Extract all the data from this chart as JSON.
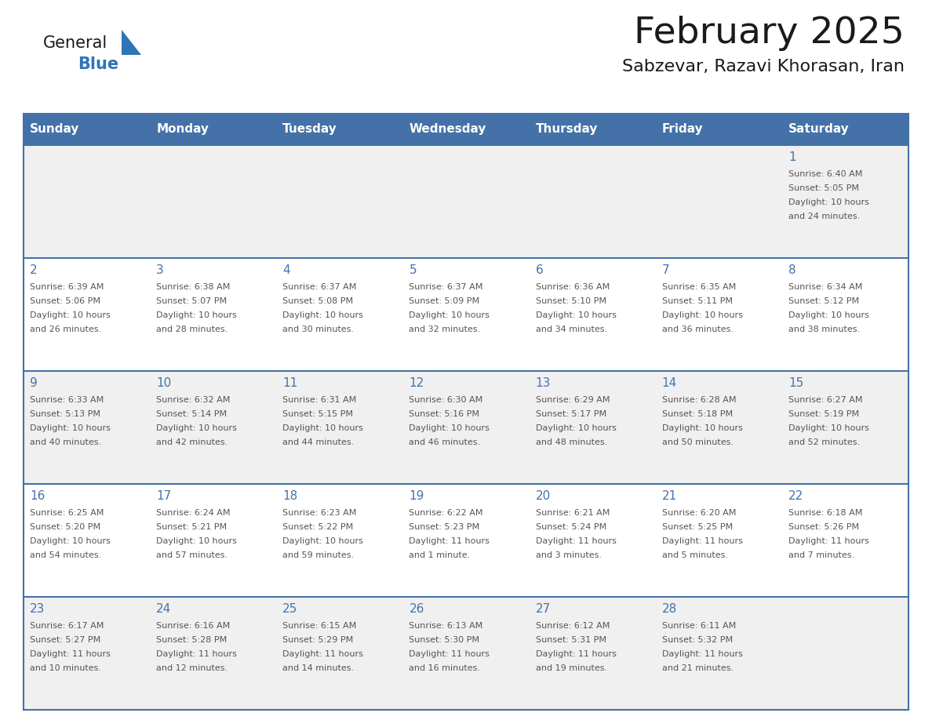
{
  "title": "February 2025",
  "subtitle": "Sabzevar, Razavi Khorasan, Iran",
  "days_of_week": [
    "Sunday",
    "Monday",
    "Tuesday",
    "Wednesday",
    "Thursday",
    "Friday",
    "Saturday"
  ],
  "header_bg": "#4472a8",
  "header_text_color": "#ffffff",
  "cell_bg_row0": "#f0f0f0",
  "cell_bg_row1": "#ffffff",
  "cell_bg_row2": "#f0f0f0",
  "cell_bg_row3": "#ffffff",
  "cell_bg_row4": "#f0f0f0",
  "cell_border_color": "#4472a8",
  "day_number_color": "#4472a8",
  "info_text_color": "#555555",
  "title_color": "#1a1a1a",
  "subtitle_color": "#1a1a1a",
  "logo_general_color": "#1a1a1a",
  "logo_blue_color": "#2e75b6",
  "days": [
    {
      "day": 1,
      "col": 6,
      "row": 0,
      "sunrise": "6:40 AM",
      "sunset": "5:05 PM",
      "daylight": "10 hours and 24 minutes."
    },
    {
      "day": 2,
      "col": 0,
      "row": 1,
      "sunrise": "6:39 AM",
      "sunset": "5:06 PM",
      "daylight": "10 hours and 26 minutes."
    },
    {
      "day": 3,
      "col": 1,
      "row": 1,
      "sunrise": "6:38 AM",
      "sunset": "5:07 PM",
      "daylight": "10 hours and 28 minutes."
    },
    {
      "day": 4,
      "col": 2,
      "row": 1,
      "sunrise": "6:37 AM",
      "sunset": "5:08 PM",
      "daylight": "10 hours and 30 minutes."
    },
    {
      "day": 5,
      "col": 3,
      "row": 1,
      "sunrise": "6:37 AM",
      "sunset": "5:09 PM",
      "daylight": "10 hours and 32 minutes."
    },
    {
      "day": 6,
      "col": 4,
      "row": 1,
      "sunrise": "6:36 AM",
      "sunset": "5:10 PM",
      "daylight": "10 hours and 34 minutes."
    },
    {
      "day": 7,
      "col": 5,
      "row": 1,
      "sunrise": "6:35 AM",
      "sunset": "5:11 PM",
      "daylight": "10 hours and 36 minutes."
    },
    {
      "day": 8,
      "col": 6,
      "row": 1,
      "sunrise": "6:34 AM",
      "sunset": "5:12 PM",
      "daylight": "10 hours and 38 minutes."
    },
    {
      "day": 9,
      "col": 0,
      "row": 2,
      "sunrise": "6:33 AM",
      "sunset": "5:13 PM",
      "daylight": "10 hours and 40 minutes."
    },
    {
      "day": 10,
      "col": 1,
      "row": 2,
      "sunrise": "6:32 AM",
      "sunset": "5:14 PM",
      "daylight": "10 hours and 42 minutes."
    },
    {
      "day": 11,
      "col": 2,
      "row": 2,
      "sunrise": "6:31 AM",
      "sunset": "5:15 PM",
      "daylight": "10 hours and 44 minutes."
    },
    {
      "day": 12,
      "col": 3,
      "row": 2,
      "sunrise": "6:30 AM",
      "sunset": "5:16 PM",
      "daylight": "10 hours and 46 minutes."
    },
    {
      "day": 13,
      "col": 4,
      "row": 2,
      "sunrise": "6:29 AM",
      "sunset": "5:17 PM",
      "daylight": "10 hours and 48 minutes."
    },
    {
      "day": 14,
      "col": 5,
      "row": 2,
      "sunrise": "6:28 AM",
      "sunset": "5:18 PM",
      "daylight": "10 hours and 50 minutes."
    },
    {
      "day": 15,
      "col": 6,
      "row": 2,
      "sunrise": "6:27 AM",
      "sunset": "5:19 PM",
      "daylight": "10 hours and 52 minutes."
    },
    {
      "day": 16,
      "col": 0,
      "row": 3,
      "sunrise": "6:25 AM",
      "sunset": "5:20 PM",
      "daylight": "10 hours and 54 minutes."
    },
    {
      "day": 17,
      "col": 1,
      "row": 3,
      "sunrise": "6:24 AM",
      "sunset": "5:21 PM",
      "daylight": "10 hours and 57 minutes."
    },
    {
      "day": 18,
      "col": 2,
      "row": 3,
      "sunrise": "6:23 AM",
      "sunset": "5:22 PM",
      "daylight": "10 hours and 59 minutes."
    },
    {
      "day": 19,
      "col": 3,
      "row": 3,
      "sunrise": "6:22 AM",
      "sunset": "5:23 PM",
      "daylight": "11 hours and 1 minute."
    },
    {
      "day": 20,
      "col": 4,
      "row": 3,
      "sunrise": "6:21 AM",
      "sunset": "5:24 PM",
      "daylight": "11 hours and 3 minutes."
    },
    {
      "day": 21,
      "col": 5,
      "row": 3,
      "sunrise": "6:20 AM",
      "sunset": "5:25 PM",
      "daylight": "11 hours and 5 minutes."
    },
    {
      "day": 22,
      "col": 6,
      "row": 3,
      "sunrise": "6:18 AM",
      "sunset": "5:26 PM",
      "daylight": "11 hours and 7 minutes."
    },
    {
      "day": 23,
      "col": 0,
      "row": 4,
      "sunrise": "6:17 AM",
      "sunset": "5:27 PM",
      "daylight": "11 hours and 10 minutes."
    },
    {
      "day": 24,
      "col": 1,
      "row": 4,
      "sunrise": "6:16 AM",
      "sunset": "5:28 PM",
      "daylight": "11 hours and 12 minutes."
    },
    {
      "day": 25,
      "col": 2,
      "row": 4,
      "sunrise": "6:15 AM",
      "sunset": "5:29 PM",
      "daylight": "11 hours and 14 minutes."
    },
    {
      "day": 26,
      "col": 3,
      "row": 4,
      "sunrise": "6:13 AM",
      "sunset": "5:30 PM",
      "daylight": "11 hours and 16 minutes."
    },
    {
      "day": 27,
      "col": 4,
      "row": 4,
      "sunrise": "6:12 AM",
      "sunset": "5:31 PM",
      "daylight": "11 hours and 19 minutes."
    },
    {
      "day": 28,
      "col": 5,
      "row": 4,
      "sunrise": "6:11 AM",
      "sunset": "5:32 PM",
      "daylight": "11 hours and 21 minutes."
    }
  ]
}
